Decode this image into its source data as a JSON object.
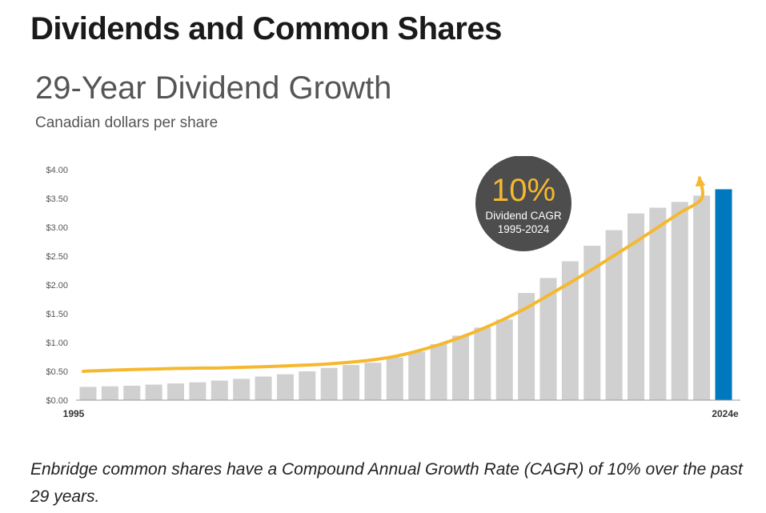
{
  "page": {
    "heading": "Dividends and Common Shares",
    "caption": "Enbridge common shares have a Compound Annual Growth Rate (CAGR) of 10% over the past 29 years."
  },
  "colors": {
    "bar": "#d0d0d0",
    "highlight_bar": "#0078be",
    "trend_arrow": "#f5b82e",
    "badge": "#4d4d4d",
    "badge_percent": "#f5b82e",
    "axis_text": "#555555"
  },
  "chart_data": {
    "type": "bar",
    "title": "29-Year Dividend Growth",
    "subtitle": "Canadian dollars per share",
    "x_tick_labels": [
      "1995",
      "2024e"
    ],
    "values": [
      0.23,
      0.24,
      0.25,
      0.27,
      0.29,
      0.31,
      0.34,
      0.37,
      0.41,
      0.45,
      0.5,
      0.56,
      0.61,
      0.65,
      0.74,
      0.84,
      0.97,
      1.12,
      1.26,
      1.4,
      1.86,
      2.12,
      2.41,
      2.68,
      2.95,
      3.24,
      3.34,
      3.44,
      3.55,
      3.66
    ],
    "highlight_last": true,
    "ylim": [
      0,
      4
    ],
    "y_ticks": [
      0,
      0.5,
      1,
      1.5,
      2,
      2.5,
      3,
      3.5,
      4
    ],
    "y_tick_labels": [
      "$0.00",
      "$0.50",
      "$1.00",
      "$1.50",
      "$2.00",
      "$2.50",
      "$3.00",
      "$3.50",
      "$4.00"
    ],
    "trend_line": [
      0.5,
      0.52,
      0.53,
      0.54,
      0.55,
      0.555,
      0.56,
      0.57,
      0.58,
      0.595,
      0.61,
      0.63,
      0.66,
      0.7,
      0.76,
      0.85,
      0.96,
      1.09,
      1.24,
      1.41,
      1.6,
      1.82,
      2.04,
      2.27,
      2.51,
      2.75,
      3.0,
      3.25,
      3.5,
      3.8
    ],
    "grid": false,
    "legend": "none",
    "annotation": {
      "value": "10%",
      "line1": "Dividend CAGR",
      "line2": "1995-2024"
    }
  }
}
